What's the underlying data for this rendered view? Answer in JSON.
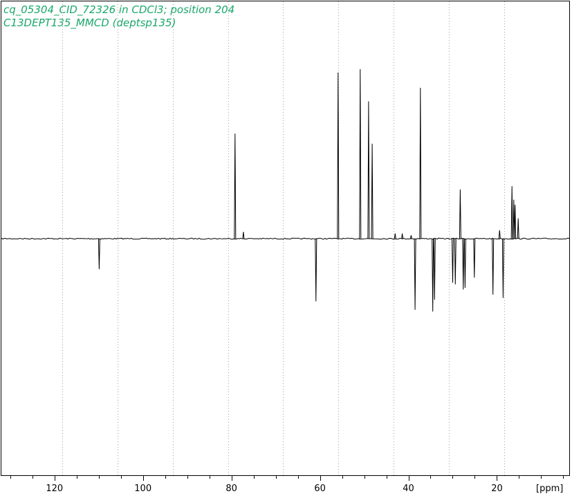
{
  "header": {
    "title_line1": "cq_05304_CID_72326 in CDCl3; position 204",
    "title_line2": "C13DEPT135_MMCD (deptsp135)"
  },
  "colors": {
    "title": "#1aa86a",
    "trace": "#000000",
    "grid": "#a0a0a0",
    "frame": "#000000"
  },
  "chart_data": {
    "type": "line",
    "title": "cq_05304_CID_72326 in CDCl3; position 204",
    "subtitle": "C13DEPT135_MMCD (deptsp135)",
    "xlabel": "[ppm]",
    "ylabel": "",
    "x_reversed": true,
    "xlim": [
      132.0,
      3.5
    ],
    "ylim": [
      -1.45,
      1.0
    ],
    "xticks_major": [
      120,
      100,
      80,
      60,
      40,
      20
    ],
    "xtick_labels": [
      "120",
      "100",
      "80",
      "60",
      "40",
      "20"
    ],
    "xticks_minor_step": 5,
    "grid_x_dotted": [
      118.3,
      105.8,
      93.3,
      80.8,
      68.3,
      55.8,
      43.3,
      30.8,
      18.3
    ],
    "baseline": 0.0,
    "peaks": [
      {
        "ppm": 109.9,
        "intensity": -0.18
      },
      {
        "ppm": 79.2,
        "intensity": 0.62
      },
      {
        "ppm": 77.3,
        "intensity": 0.04
      },
      {
        "ppm": 60.9,
        "intensity": -0.37
      },
      {
        "ppm": 55.9,
        "intensity": 0.98
      },
      {
        "ppm": 50.9,
        "intensity": 1.0
      },
      {
        "ppm": 49.0,
        "intensity": 0.81
      },
      {
        "ppm": 48.2,
        "intensity": 0.56
      },
      {
        "ppm": 43.0,
        "intensity": 0.03
      },
      {
        "ppm": 41.4,
        "intensity": 0.03
      },
      {
        "ppm": 39.4,
        "intensity": 0.02
      },
      {
        "ppm": 38.5,
        "intensity": -0.42
      },
      {
        "ppm": 37.3,
        "intensity": 0.89
      },
      {
        "ppm": 34.5,
        "intensity": -0.43
      },
      {
        "ppm": 34.1,
        "intensity": -0.36
      },
      {
        "ppm": 30.0,
        "intensity": -0.26
      },
      {
        "ppm": 29.4,
        "intensity": -0.27
      },
      {
        "ppm": 28.3,
        "intensity": 0.29
      },
      {
        "ppm": 27.6,
        "intensity": -0.3
      },
      {
        "ppm": 27.2,
        "intensity": -0.29
      },
      {
        "ppm": 25.1,
        "intensity": -0.23
      },
      {
        "ppm": 20.9,
        "intensity": -0.33
      },
      {
        "ppm": 19.4,
        "intensity": 0.05
      },
      {
        "ppm": 18.6,
        "intensity": -0.35
      },
      {
        "ppm": 16.6,
        "intensity": 0.31
      },
      {
        "ppm": 16.2,
        "intensity": 0.23
      },
      {
        "ppm": 15.9,
        "intensity": 0.2
      },
      {
        "ppm": 15.2,
        "intensity": 0.12
      }
    ]
  }
}
